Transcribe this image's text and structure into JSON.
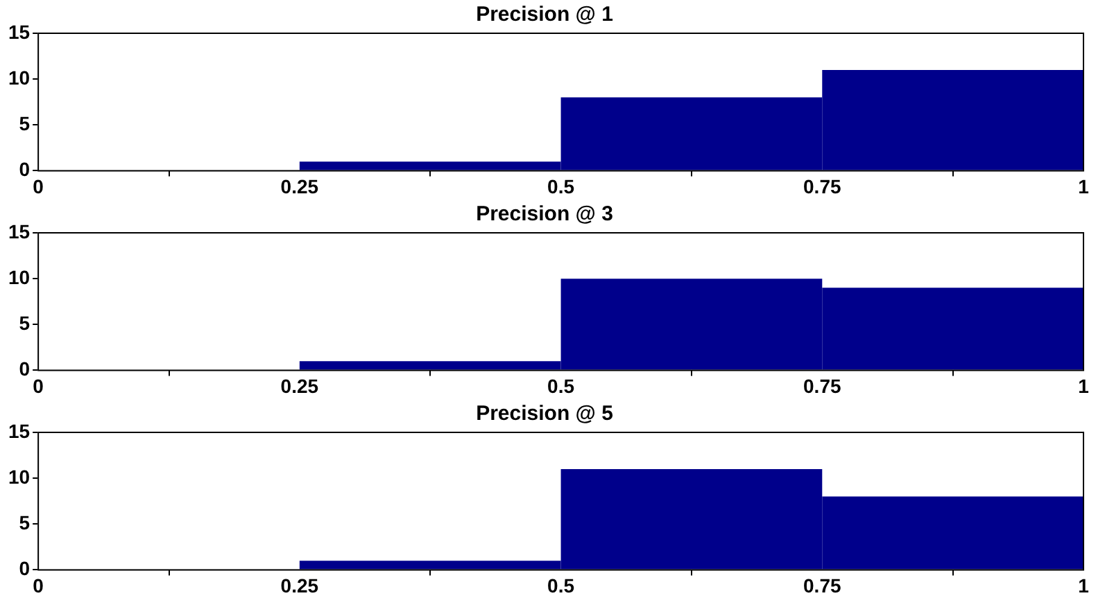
{
  "chart_data": [
    {
      "type": "histogram",
      "title": "Precision @ 1",
      "bins": [
        0,
        0.25,
        0.5,
        0.75,
        1
      ],
      "values": [
        0,
        1,
        8,
        11
      ],
      "color": "#00008b",
      "xlim": [
        0,
        1
      ],
      "xticks": [
        0,
        0.25,
        0.5,
        0.75,
        1
      ],
      "ylim": [
        0,
        15
      ],
      "yticks": [
        0,
        5,
        10,
        15
      ],
      "grid": false
    },
    {
      "type": "histogram",
      "title": "Precision @ 3",
      "bins": [
        0,
        0.25,
        0.5,
        0.75,
        1
      ],
      "values": [
        0,
        1,
        10,
        9
      ],
      "color": "#00008b",
      "xlim": [
        0,
        1
      ],
      "xticks": [
        0,
        0.25,
        0.5,
        0.75,
        1
      ],
      "ylim": [
        0,
        15
      ],
      "yticks": [
        0,
        5,
        10,
        15
      ],
      "grid": false
    },
    {
      "type": "histogram",
      "title": "Precision @ 5",
      "bins": [
        0,
        0.25,
        0.5,
        0.75,
        1
      ],
      "values": [
        0,
        1,
        11,
        8
      ],
      "color": "#00008b",
      "xlim": [
        0,
        1
      ],
      "xticks": [
        0,
        0.25,
        0.5,
        0.75,
        1
      ],
      "ylim": [
        0,
        15
      ],
      "yticks": [
        0,
        5,
        10,
        15
      ],
      "grid": false
    }
  ]
}
